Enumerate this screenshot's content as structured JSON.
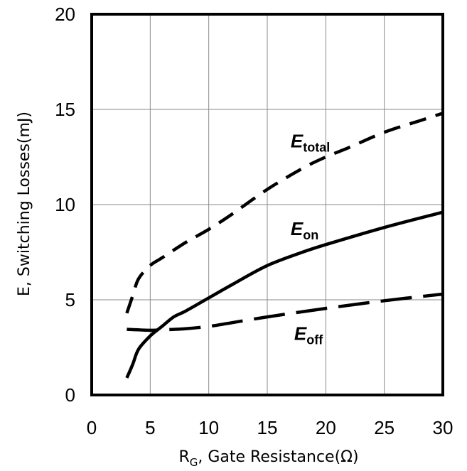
{
  "chart_data": {
    "type": "line",
    "title": "",
    "xlabel": "R",
    "xlabel_sub": "G",
    "xlabel_rest": ", Gate Resistance(Ω)",
    "ylabel": "E, Switching Losses(mJ)",
    "xlim": [
      0,
      30
    ],
    "ylim": [
      0,
      20
    ],
    "xticks": [
      0,
      5,
      10,
      15,
      20,
      25,
      30
    ],
    "yticks": [
      0,
      5,
      10,
      15,
      20
    ],
    "grid": true,
    "series": [
      {
        "name": "Etotal",
        "label_main": "E",
        "label_sub": "total",
        "style": "dashed",
        "label_at": [
          17,
          13.0
        ],
        "points": [
          [
            3,
            4.3
          ],
          [
            3.5,
            5.2
          ],
          [
            4,
            6.1
          ],
          [
            5,
            6.8
          ],
          [
            6,
            7.2
          ],
          [
            8,
            8.0
          ],
          [
            10,
            8.7
          ],
          [
            12,
            9.5
          ],
          [
            15,
            10.8
          ],
          [
            18,
            11.9
          ],
          [
            20,
            12.5
          ],
          [
            22,
            13.0
          ],
          [
            25,
            13.8
          ],
          [
            28,
            14.4
          ],
          [
            30,
            14.8
          ]
        ]
      },
      {
        "name": "Eon",
        "label_main": "E",
        "label_sub": "on",
        "style": "solid",
        "label_at": [
          17,
          8.4
        ],
        "points": [
          [
            3,
            0.9
          ],
          [
            3.5,
            1.6
          ],
          [
            4,
            2.4
          ],
          [
            5,
            3.1
          ],
          [
            6,
            3.6
          ],
          [
            7,
            4.1
          ],
          [
            8,
            4.4
          ],
          [
            10,
            5.1
          ],
          [
            12,
            5.8
          ],
          [
            15,
            6.8
          ],
          [
            18,
            7.5
          ],
          [
            20,
            7.9
          ],
          [
            25,
            8.8
          ],
          [
            30,
            9.6
          ]
        ]
      },
      {
        "name": "Eoff",
        "label_main": "E",
        "label_sub": "off",
        "style": "longdash",
        "label_at": [
          17.3,
          2.9
        ],
        "points": [
          [
            3,
            3.45
          ],
          [
            4,
            3.42
          ],
          [
            5,
            3.4
          ],
          [
            6,
            3.42
          ],
          [
            8,
            3.48
          ],
          [
            10,
            3.6
          ],
          [
            12,
            3.8
          ],
          [
            15,
            4.1
          ],
          [
            20,
            4.55
          ],
          [
            25,
            4.95
          ],
          [
            30,
            5.3
          ]
        ]
      }
    ]
  }
}
